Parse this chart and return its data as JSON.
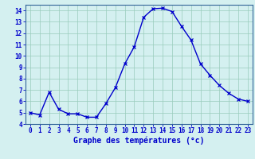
{
  "hours": [
    0,
    1,
    2,
    3,
    4,
    5,
    6,
    7,
    8,
    9,
    10,
    11,
    12,
    13,
    14,
    15,
    16,
    17,
    18,
    19,
    20,
    21,
    22,
    23
  ],
  "temperatures": [
    5.0,
    4.8,
    6.8,
    5.3,
    4.9,
    4.9,
    4.6,
    4.6,
    5.8,
    7.2,
    9.3,
    10.8,
    13.4,
    14.15,
    14.2,
    13.9,
    12.6,
    11.4,
    9.3,
    8.3,
    7.4,
    6.7,
    6.2,
    6.0
  ],
  "line_color": "#0000cc",
  "marker": "x",
  "marker_size": 3,
  "linewidth": 1.0,
  "bg_color": "#d4f0f0",
  "plot_bg_color": "#d4f0f0",
  "grid_color": "#99ccbb",
  "xlabel": "Graphe des températures (°c)",
  "ylim": [
    4,
    14.5
  ],
  "yticks": [
    4,
    5,
    6,
    7,
    8,
    9,
    10,
    11,
    12,
    13,
    14
  ],
  "xticks": [
    0,
    1,
    2,
    3,
    4,
    5,
    6,
    7,
    8,
    9,
    10,
    11,
    12,
    13,
    14,
    15,
    16,
    17,
    18,
    19,
    20,
    21,
    22,
    23
  ],
  "axis_color": "#0000cc",
  "tick_fontsize": 5.5,
  "label_fontsize": 7.0,
  "spine_color": "#336699"
}
